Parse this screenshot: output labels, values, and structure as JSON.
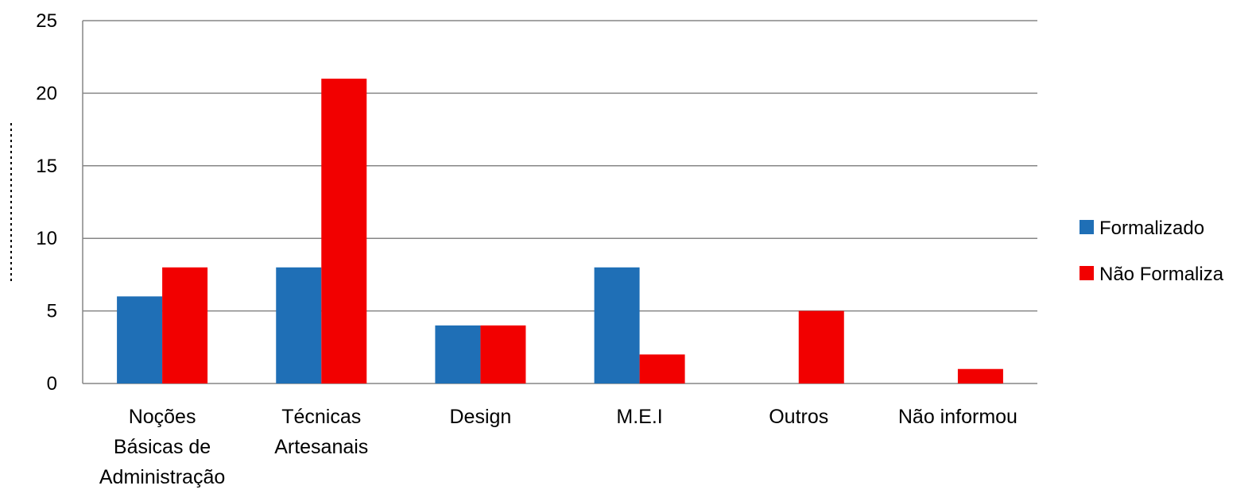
{
  "chart_data": {
    "type": "bar",
    "categories": [
      [
        "Noções",
        "Básicas de",
        "Administração"
      ],
      [
        "Técnicas",
        "Artesanais"
      ],
      [
        "Design"
      ],
      [
        "M.E.I"
      ],
      [
        "Outros"
      ],
      [
        "Não informou"
      ]
    ],
    "series": [
      {
        "name": "Formalizado",
        "color": "#1f6fb6",
        "values": [
          6,
          8,
          4,
          8,
          0,
          0
        ]
      },
      {
        "name": "Não Formaliza",
        "color": "#f20000",
        "values": [
          8,
          21,
          4,
          2,
          5,
          1
        ]
      }
    ],
    "yticks": [
      "0",
      "5",
      "10",
      "15",
      "20",
      "25"
    ],
    "ylim": [
      0,
      25
    ],
    "grid": true,
    "legend_position": "right",
    "title": "",
    "xlabel": "",
    "ylabel": ""
  }
}
